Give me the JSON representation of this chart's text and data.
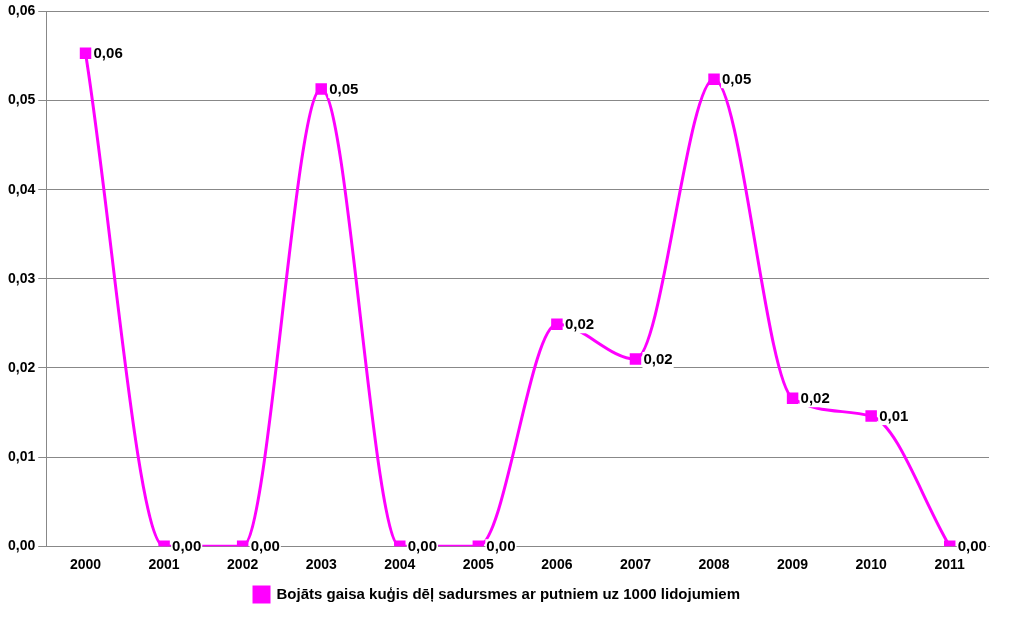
{
  "chart_data": {
    "type": "line",
    "categories": [
      "2000",
      "2001",
      "2002",
      "2003",
      "2004",
      "2005",
      "2006",
      "2007",
      "2008",
      "2009",
      "2010",
      "2011"
    ],
    "series": [
      {
        "name": "Bojāts gaisa kuģis dēļ sadursmes ar putniem uz 1000 lidojumiem",
        "color": "#ff00ff",
        "values": [
          0.0553,
          0,
          0,
          0.0513,
          0,
          0,
          0.0249,
          0.021,
          0.0524,
          0.0166,
          0.0146,
          0
        ],
        "value_labels": [
          "0,06",
          "0,00",
          "0,00",
          "0,05",
          "0,00",
          "0,00",
          "0,02",
          "0,02",
          "0,05",
          "0,02",
          "0,01",
          "0,00"
        ]
      }
    ],
    "ylim": [
      0,
      0.06
    ],
    "yticks": [
      {
        "value": 0,
        "label": "0,00"
      },
      {
        "value": 0.01,
        "label": "0,01"
      },
      {
        "value": 0.02,
        "label": "0,02"
      },
      {
        "value": 0.03,
        "label": "0,03"
      },
      {
        "value": 0.04,
        "label": "0,04"
      },
      {
        "value": 0.05,
        "label": "0,05"
      },
      {
        "value": 0.06,
        "label": "0,06"
      }
    ],
    "grid": "y",
    "legend": "bottom",
    "marker": "square",
    "line_style": "solid"
  }
}
